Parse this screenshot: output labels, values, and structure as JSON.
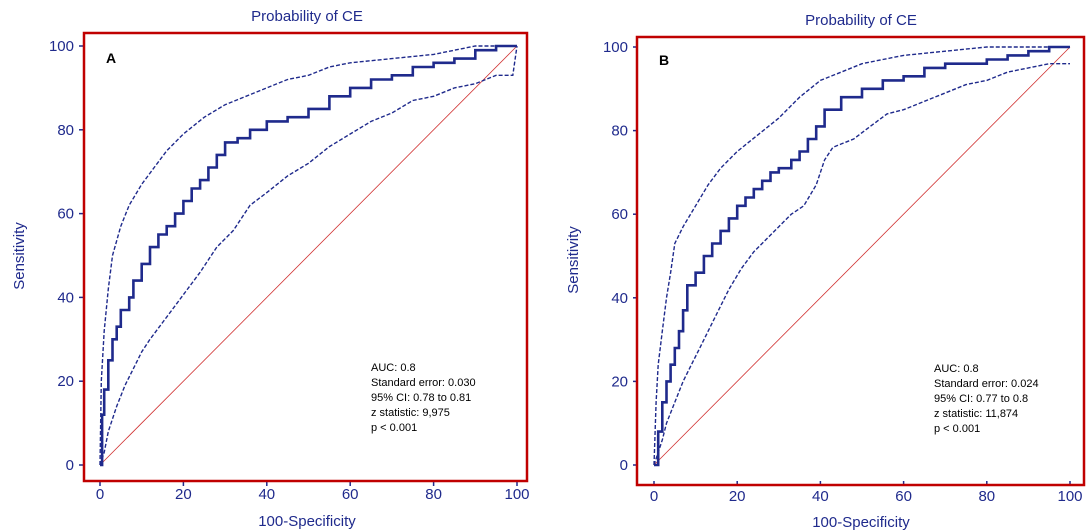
{
  "colors": {
    "curve": "#1f2a8c",
    "frame": "#c00000",
    "diagonal": "#d03030",
    "text": "#1f2a8c"
  },
  "chart_data": [
    {
      "type": "line",
      "panel_label": "A",
      "title": "Probability of CE",
      "xlabel": "100-Specificity",
      "ylabel": "Sensitivity",
      "xlim": [
        0,
        100
      ],
      "ylim": [
        0,
        100
      ],
      "xticks": [
        "0",
        "20",
        "40",
        "60",
        "80",
        "100"
      ],
      "yticks": [
        "0",
        "20",
        "40",
        "60",
        "80",
        "100"
      ],
      "stats": [
        "AUC: 0.8",
        "Standard error: 0.030",
        "95% CI: 0.78 to 0.81",
        "z statistic: 9,975",
        "p < 0.001"
      ],
      "roc": [
        [
          0,
          0
        ],
        [
          0.5,
          12
        ],
        [
          1,
          18
        ],
        [
          2,
          25
        ],
        [
          3,
          30
        ],
        [
          4,
          33
        ],
        [
          5,
          37
        ],
        [
          7,
          40
        ],
        [
          8,
          44
        ],
        [
          10,
          48
        ],
        [
          12,
          52
        ],
        [
          14,
          55
        ],
        [
          16,
          57
        ],
        [
          18,
          60
        ],
        [
          20,
          63
        ],
        [
          22,
          66
        ],
        [
          24,
          68
        ],
        [
          26,
          71
        ],
        [
          28,
          74
        ],
        [
          30,
          77
        ],
        [
          33,
          78
        ],
        [
          36,
          80
        ],
        [
          40,
          82
        ],
        [
          45,
          83
        ],
        [
          50,
          85
        ],
        [
          55,
          88
        ],
        [
          60,
          90
        ],
        [
          65,
          92
        ],
        [
          70,
          93
        ],
        [
          75,
          95
        ],
        [
          80,
          96
        ],
        [
          85,
          97
        ],
        [
          90,
          99
        ],
        [
          95,
          100
        ],
        [
          100,
          100
        ]
      ],
      "upper": [
        [
          0,
          0
        ],
        [
          0.3,
          20
        ],
        [
          1,
          32
        ],
        [
          2,
          42
        ],
        [
          3,
          50
        ],
        [
          5,
          57
        ],
        [
          7,
          62
        ],
        [
          10,
          67
        ],
        [
          13,
          71
        ],
        [
          16,
          75
        ],
        [
          20,
          79
        ],
        [
          25,
          83
        ],
        [
          30,
          86
        ],
        [
          35,
          88
        ],
        [
          40,
          90
        ],
        [
          45,
          92
        ],
        [
          50,
          93
        ],
        [
          55,
          95
        ],
        [
          60,
          96
        ],
        [
          70,
          97
        ],
        [
          80,
          98
        ],
        [
          90,
          100
        ],
        [
          100,
          100
        ]
      ],
      "lower": [
        [
          0,
          0
        ],
        [
          1,
          3
        ],
        [
          2,
          8
        ],
        [
          4,
          14
        ],
        [
          6,
          19
        ],
        [
          8,
          23
        ],
        [
          10,
          27
        ],
        [
          12,
          30
        ],
        [
          15,
          34
        ],
        [
          18,
          38
        ],
        [
          21,
          42
        ],
        [
          24,
          46
        ],
        [
          28,
          52
        ],
        [
          32,
          56
        ],
        [
          36,
          62
        ],
        [
          40,
          65
        ],
        [
          45,
          69
        ],
        [
          50,
          72
        ],
        [
          55,
          76
        ],
        [
          60,
          79
        ],
        [
          65,
          82
        ],
        [
          70,
          84
        ],
        [
          75,
          87
        ],
        [
          80,
          88
        ],
        [
          85,
          90
        ],
        [
          90,
          91
        ],
        [
          95,
          93
        ],
        [
          99,
          93
        ],
        [
          100,
          100
        ]
      ]
    },
    {
      "type": "line",
      "panel_label": "B",
      "title": "Probability of CE",
      "xlabel": "100-Specificity",
      "ylabel": "Sensitivity",
      "xlim": [
        0,
        100
      ],
      "ylim": [
        0,
        100
      ],
      "xticks": [
        "0",
        "20",
        "40",
        "60",
        "80",
        "100"
      ],
      "yticks": [
        "0",
        "20",
        "40",
        "60",
        "80",
        "100"
      ],
      "stats": [
        "AUC: 0.8",
        "Standard error: 0.024",
        "95% CI: 0.77 to 0.8",
        "z statistic: 11,874",
        "p < 0.001"
      ],
      "roc": [
        [
          0,
          0
        ],
        [
          1,
          8
        ],
        [
          2,
          15
        ],
        [
          3,
          20
        ],
        [
          4,
          24
        ],
        [
          5,
          28
        ],
        [
          6,
          32
        ],
        [
          7,
          37
        ],
        [
          8,
          43
        ],
        [
          10,
          46
        ],
        [
          12,
          50
        ],
        [
          14,
          53
        ],
        [
          16,
          56
        ],
        [
          18,
          59
        ],
        [
          20,
          62
        ],
        [
          22,
          64
        ],
        [
          24,
          66
        ],
        [
          26,
          68
        ],
        [
          28,
          70
        ],
        [
          30,
          71
        ],
        [
          33,
          73
        ],
        [
          35,
          75
        ],
        [
          37,
          78
        ],
        [
          39,
          81
        ],
        [
          41,
          85
        ],
        [
          45,
          88
        ],
        [
          50,
          90
        ],
        [
          55,
          92
        ],
        [
          60,
          93
        ],
        [
          65,
          95
        ],
        [
          70,
          96
        ],
        [
          75,
          96
        ],
        [
          80,
          97
        ],
        [
          85,
          98
        ],
        [
          90,
          99
        ],
        [
          95,
          100
        ],
        [
          100,
          100
        ]
      ],
      "upper": [
        [
          0,
          0
        ],
        [
          0.5,
          15
        ],
        [
          1,
          24
        ],
        [
          2,
          32
        ],
        [
          3,
          40
        ],
        [
          4,
          46
        ],
        [
          5,
          53
        ],
        [
          7,
          57
        ],
        [
          10,
          62
        ],
        [
          13,
          67
        ],
        [
          16,
          71
        ],
        [
          20,
          75
        ],
        [
          25,
          79
        ],
        [
          30,
          83
        ],
        [
          35,
          88
        ],
        [
          40,
          92
        ],
        [
          45,
          94
        ],
        [
          50,
          96
        ],
        [
          55,
          97
        ],
        [
          60,
          98
        ],
        [
          70,
          99
        ],
        [
          80,
          100
        ],
        [
          100,
          100
        ]
      ],
      "lower": [
        [
          0,
          0
        ],
        [
          1,
          3
        ],
        [
          2,
          6
        ],
        [
          3,
          10
        ],
        [
          5,
          15
        ],
        [
          7,
          20
        ],
        [
          9,
          24
        ],
        [
          11,
          28
        ],
        [
          13,
          32
        ],
        [
          15,
          36
        ],
        [
          18,
          42
        ],
        [
          21,
          47
        ],
        [
          24,
          51
        ],
        [
          27,
          54
        ],
        [
          30,
          57
        ],
        [
          33,
          60
        ],
        [
          36,
          62
        ],
        [
          39,
          67
        ],
        [
          41,
          73
        ],
        [
          43,
          76
        ],
        [
          48,
          78
        ],
        [
          52,
          81
        ],
        [
          56,
          84
        ],
        [
          60,
          85
        ],
        [
          65,
          87
        ],
        [
          70,
          89
        ],
        [
          75,
          91
        ],
        [
          80,
          92
        ],
        [
          85,
          94
        ],
        [
          90,
          95
        ],
        [
          95,
          96
        ],
        [
          100,
          96
        ]
      ]
    }
  ]
}
